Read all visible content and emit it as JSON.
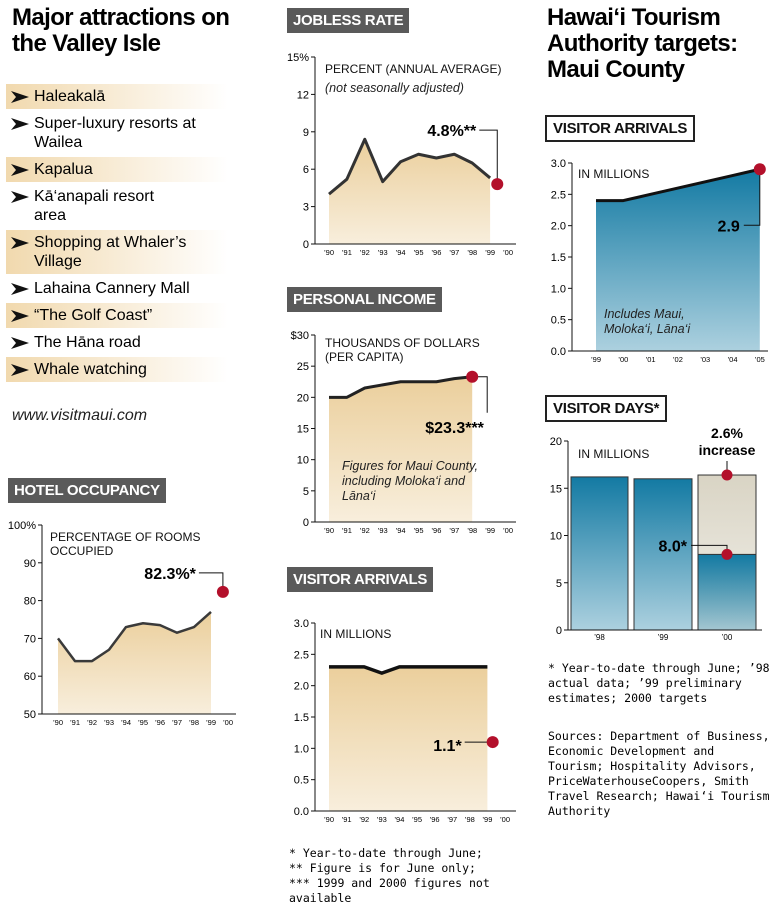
{
  "left": {
    "title": "Major attractions on the Valley Isle",
    "attractions": [
      "Haleakalā",
      "Super-luxury resorts at Wailea",
      "Kapalua",
      "Kā‘anapali resort area",
      "Shopping at Whaler’s Village",
      "Lahaina Cannery Mall",
      "“The Golf Coast”",
      "The Hāna road",
      "Whale watching"
    ],
    "url": "www.visitmaui.com"
  },
  "middle": {
    "footnotes": [
      "* Year-to-date through June;",
      "** Figure is for June only;",
      "*** 1999 and 2000 figures not available"
    ]
  },
  "right": {
    "title": "Hawai‘i Tourism Authority targets: Maui County",
    "footnote": "* Year-to-date through June; ’98 actual data; ’99 preliminary estimates; 2000 targets",
    "sources": "Sources: Department of Business, Economic Development and Tourism; Hospitality Advisors, PriceWaterhouseCoopers, Smith Travel Research; Hawai‘i Tourism Authority"
  },
  "chart_data": [
    {
      "type": "area",
      "title": "HOTEL OCCUPANCY",
      "axis_label": "PERCENTAGE OF ROOMS OCCUPIED",
      "categories": [
        "’90",
        "’91",
        "’92",
        "’93",
        "’94",
        "’95",
        "’96",
        "’97",
        "’98",
        "’99",
        "’00"
      ],
      "values": [
        70,
        64,
        64,
        67,
        73,
        74,
        73.5,
        71.5,
        73,
        77,
        null
      ],
      "color": "#ebcf9c",
      "ylim": [
        50,
        100
      ],
      "yticks": [
        50,
        60,
        70,
        80,
        90,
        {
          "value": 100,
          "label": "100%"
        }
      ],
      "highlight": {
        "value": 82.3,
        "label": "82.3%*"
      }
    },
    {
      "type": "area",
      "title": "JOBLESS RATE",
      "axis_label": "PERCENT (ANNUAL AVERAGE)",
      "subtitle": "(not seasonally adjusted)",
      "categories": [
        "’90",
        "’91",
        "’92",
        "’93",
        "’94",
        "’95",
        "’96",
        "’97",
        "’98",
        "’99",
        "’00"
      ],
      "values": [
        4.0,
        5.2,
        8.4,
        5.0,
        6.6,
        7.2,
        6.9,
        7.2,
        6.5,
        5.3,
        null
      ],
      "color": "#ebcf9c",
      "ylim": [
        0,
        15
      ],
      "yticks": [
        0,
        3,
        6,
        9,
        12,
        {
          "value": 15,
          "label": "15%"
        }
      ],
      "highlight": {
        "value": 4.8,
        "label": "4.8%**"
      }
    },
    {
      "type": "area",
      "title": "PERSONAL INCOME",
      "axis_label": "THOUSANDS OF DOLLARS (PER CAPITA)",
      "note": "Figures for Maui County, including Moloka‘i and Lāna‘i",
      "categories": [
        "’90",
        "’91",
        "’92",
        "’93",
        "’94",
        "’95",
        "’96",
        "’97",
        "’98",
        "’99",
        "’00"
      ],
      "values": [
        20,
        20,
        21.5,
        22,
        22.5,
        22.5,
        22.5,
        23,
        23.3,
        null,
        null
      ],
      "color": "#ebcf9c",
      "ylim": [
        0,
        30
      ],
      "yticks": [
        0,
        5,
        10,
        15,
        20,
        25,
        {
          "value": 30,
          "label": "$30"
        }
      ],
      "highlight": {
        "value": 23.3,
        "label": "$23.3***"
      }
    },
    {
      "type": "area",
      "title": "VISITOR ARRIVALS",
      "axis_label": "IN MILLIONS",
      "categories": [
        "’90",
        "’91",
        "’92",
        "’93",
        "’94",
        "’95",
        "’96",
        "’97",
        "’98",
        "’99",
        "’00"
      ],
      "values": [
        2.3,
        2.3,
        2.3,
        2.2,
        2.3,
        2.3,
        2.3,
        2.3,
        2.3,
        2.3,
        null
      ],
      "color": "#ebcf9c",
      "ylim": [
        0,
        3
      ],
      "yticks": [
        {
          "value": 0,
          "label": "0.0"
        },
        0.5,
        {
          "value": 1,
          "label": "1.0"
        },
        1.5,
        {
          "value": 2,
          "label": "2.0"
        },
        2.5,
        {
          "value": 3,
          "label": "3.0"
        }
      ],
      "highlight": {
        "value": 1.1,
        "label": "1.1*"
      }
    },
    {
      "type": "area",
      "title": "VISITOR ARRIVALS",
      "axis_label": "IN MILLIONS",
      "note": "Includes Maui, Moloka‘i, Lāna‘i",
      "categories": [
        "’99",
        "’00",
        "’01",
        "’02",
        "’03",
        "’04",
        "’05"
      ],
      "values": [
        2.4,
        2.4,
        2.5,
        2.6,
        2.7,
        2.8,
        2.9
      ],
      "color": "#137aa3",
      "ylim": [
        0,
        3
      ],
      "yticks": [
        {
          "value": 0,
          "label": "0.0"
        },
        0.5,
        {
          "value": 1,
          "label": "1.0"
        },
        1.5,
        {
          "value": 2,
          "label": "2.0"
        },
        2.5,
        {
          "value": 3,
          "label": "3.0"
        }
      ],
      "highlight": {
        "value": 2.9
      }
    },
    {
      "type": "bar",
      "title": "VISITOR DAYS*",
      "axis_label": "IN MILLIONS",
      "categories": [
        "’98",
        "’99",
        "’00"
      ],
      "values": [
        16.2,
        16.0,
        8.0
      ],
      "value_labels": [
        null,
        null,
        "8.0*"
      ],
      "color": "#137aa3",
      "target": {
        "value": 16.4,
        "label": "2.6% increase",
        "color": "#d9d4c4"
      },
      "ylim": [
        0,
        20
      ],
      "yticks": [
        0,
        5,
        10,
        15,
        20
      ]
    }
  ]
}
